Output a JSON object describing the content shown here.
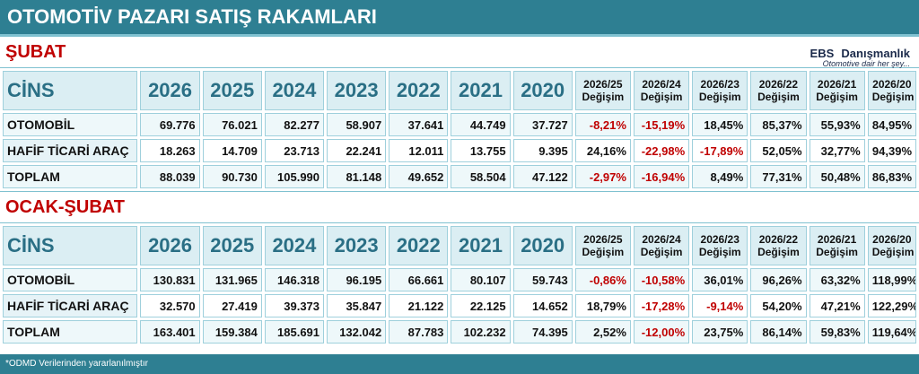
{
  "header": {
    "title": "OTOMOTİV PAZARI SATIŞ RAKAMLARI",
    "logo": "EBS",
    "logo_name": "Danışmanlık",
    "tagline": "Otomotive dair her şey..."
  },
  "sections": [
    {
      "title": "ŞUBAT",
      "table": {
        "columns": [
          "CİNS",
          "2026",
          "2025",
          "2024",
          "2023",
          "2022",
          "2021",
          "2020",
          [
            "2026/25",
            "Değişim"
          ],
          [
            "2026/24",
            "Değişim"
          ],
          [
            "2026/23",
            "Değişim"
          ],
          [
            "2026/22",
            "Değişim"
          ],
          [
            "2026/21",
            "Değişim"
          ],
          [
            "2026/20",
            "Değişim"
          ]
        ],
        "rows": [
          [
            "OTOMOBİL",
            "69.776",
            "76.021",
            "82.277",
            "58.907",
            "37.641",
            "44.749",
            "37.727",
            "-8,21%",
            "-15,19%",
            "18,45%",
            "85,37%",
            "55,93%",
            "84,95%"
          ],
          [
            "HAFİF TİCARİ ARAÇ",
            "18.263",
            "14.709",
            "23.713",
            "22.241",
            "12.011",
            "13.755",
            "9.395",
            "24,16%",
            "-22,98%",
            "-17,89%",
            "52,05%",
            "32,77%",
            "94,39%"
          ],
          [
            "TOPLAM",
            "88.039",
            "90.730",
            "105.990",
            "81.148",
            "49.652",
            "58.504",
            "47.122",
            "-2,97%",
            "-16,94%",
            "8,49%",
            "77,31%",
            "50,48%",
            "86,83%"
          ]
        ]
      }
    },
    {
      "title": "OCAK-ŞUBAT",
      "table": {
        "columns": [
          "CİNS",
          "2026",
          "2025",
          "2024",
          "2023",
          "2022",
          "2021",
          "2020",
          [
            "2026/25",
            "Değişim"
          ],
          [
            "2026/24",
            "Değişim"
          ],
          [
            "2026/23",
            "Değişim"
          ],
          [
            "2026/22",
            "Değişim"
          ],
          [
            "2026/21",
            "Değişim"
          ],
          [
            "2026/20",
            "Değişim"
          ]
        ],
        "rows": [
          [
            "OTOMOBİL",
            "130.831",
            "131.965",
            "146.318",
            "96.195",
            "66.661",
            "80.107",
            "59.743",
            "-0,86%",
            "-10,58%",
            "36,01%",
            "96,26%",
            "63,32%",
            "118,99%"
          ],
          [
            "HAFİF TİCARİ ARAÇ",
            "32.570",
            "27.419",
            "39.373",
            "35.847",
            "21.122",
            "22.125",
            "14.652",
            "18,79%",
            "-17,28%",
            "-9,14%",
            "54,20%",
            "47,21%",
            "122,29%"
          ],
          [
            "TOPLAM",
            "163.401",
            "159.384",
            "185.691",
            "132.042",
            "87.783",
            "102.232",
            "74.395",
            "2,52%",
            "-12,00%",
            "23,75%",
            "86,14%",
            "59,83%",
            "119,64%"
          ]
        ]
      }
    }
  ],
  "footer": "*ODMD Verilerinden yararlanılmıştır"
}
